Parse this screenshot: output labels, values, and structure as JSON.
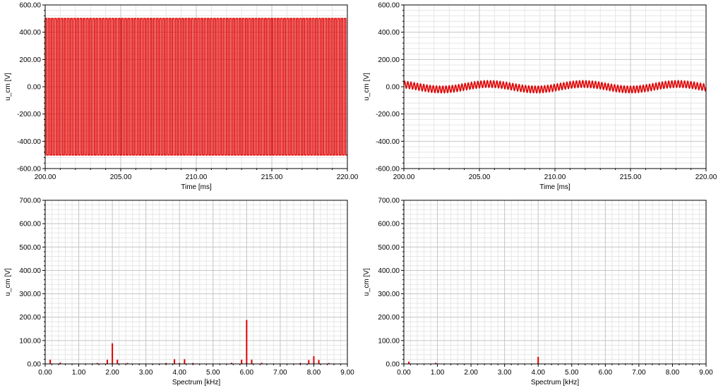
{
  "colors": {
    "trace": "#e00000",
    "grid_major": "#c4c4c4",
    "grid_minor": "#e6e6e6",
    "axis": "#000000",
    "background": "#ffffff"
  },
  "chart_data": [
    {
      "id": "time-left",
      "type": "line",
      "xlabel": "Time [ms]",
      "ylabel": "u_cm [V]",
      "xlim": [
        200,
        220
      ],
      "ylim": [
        -600,
        600
      ],
      "x_ticks": [
        "200.00",
        "205.00",
        "210.00",
        "215.00",
        "220.00"
      ],
      "y_ticks": [
        "600.00",
        "400.00",
        "200.00",
        "0.00",
        "-200.00",
        "-400.00",
        "-600.00"
      ],
      "grid": true,
      "waveform": {
        "kind": "square",
        "high": 500,
        "low": -500,
        "cycles": 95
      }
    },
    {
      "id": "time-right",
      "type": "line",
      "xlabel": "Time [ms]",
      "ylabel": "u_cm [V]",
      "xlim": [
        200,
        220
      ],
      "ylim": [
        -600,
        600
      ],
      "x_ticks": [
        "200.00",
        "205.00",
        "210.00",
        "215.00",
        "220.00"
      ],
      "y_ticks": [
        "600.00",
        "400.00",
        "200.00",
        "0.00",
        "-200.00",
        "-400.00",
        "-600.00"
      ],
      "grid": true,
      "waveform": {
        "kind": "ripple",
        "amplitude": 25,
        "envelope_amplitude": 20,
        "ripple_cycles": 95,
        "envelope_cycles": 3.2
      }
    },
    {
      "id": "spectrum-left",
      "type": "bar",
      "xlabel": "Spectrum [kHz]",
      "ylabel": "u_cm [V]",
      "xlim": [
        0,
        9
      ],
      "ylim": [
        0,
        700
      ],
      "x_ticks": [
        "0.00",
        "1.00",
        "2.00",
        "3.00",
        "4.00",
        "5.00",
        "6.00",
        "7.00",
        "8.00",
        "9.00"
      ],
      "y_ticks": [
        "700.00",
        "600.00",
        "500.00",
        "400.00",
        "300.00",
        "200.00",
        "100.00",
        "0.00"
      ],
      "grid": true,
      "bars": [
        {
          "x": 0.15,
          "y": 18
        },
        {
          "x": 0.45,
          "y": 6
        },
        {
          "x": 1.55,
          "y": 4
        },
        {
          "x": 1.85,
          "y": 18
        },
        {
          "x": 2.0,
          "y": 88
        },
        {
          "x": 2.15,
          "y": 18
        },
        {
          "x": 2.45,
          "y": 4
        },
        {
          "x": 3.6,
          "y": 4
        },
        {
          "x": 3.85,
          "y": 20
        },
        {
          "x": 4.0,
          "y": 4
        },
        {
          "x": 4.15,
          "y": 20
        },
        {
          "x": 4.4,
          "y": 4
        },
        {
          "x": 5.55,
          "y": 5
        },
        {
          "x": 5.85,
          "y": 18
        },
        {
          "x": 6.0,
          "y": 188
        },
        {
          "x": 6.15,
          "y": 18
        },
        {
          "x": 6.45,
          "y": 5
        },
        {
          "x": 7.6,
          "y": 4
        },
        {
          "x": 7.85,
          "y": 17
        },
        {
          "x": 8.0,
          "y": 33
        },
        {
          "x": 8.15,
          "y": 17
        },
        {
          "x": 8.45,
          "y": 4
        }
      ]
    },
    {
      "id": "spectrum-right",
      "type": "bar",
      "xlabel": "Spectrum [kHz]",
      "ylabel": "u_cm [V]",
      "xlim": [
        0,
        9
      ],
      "ylim": [
        0,
        700
      ],
      "x_ticks": [
        "0.00",
        "1.00",
        "2.00",
        "3.00",
        "4.00",
        "5.00",
        "6.00",
        "7.00",
        "8.00",
        "9.00"
      ],
      "y_ticks": [
        "700.00",
        "600.00",
        "500.00",
        "400.00",
        "300.00",
        "200.00",
        "100.00",
        "0.00"
      ],
      "grid": true,
      "bars": [
        {
          "x": 0.15,
          "y": 10
        },
        {
          "x": 0.95,
          "y": 5
        },
        {
          "x": 4.0,
          "y": 30
        }
      ]
    }
  ]
}
